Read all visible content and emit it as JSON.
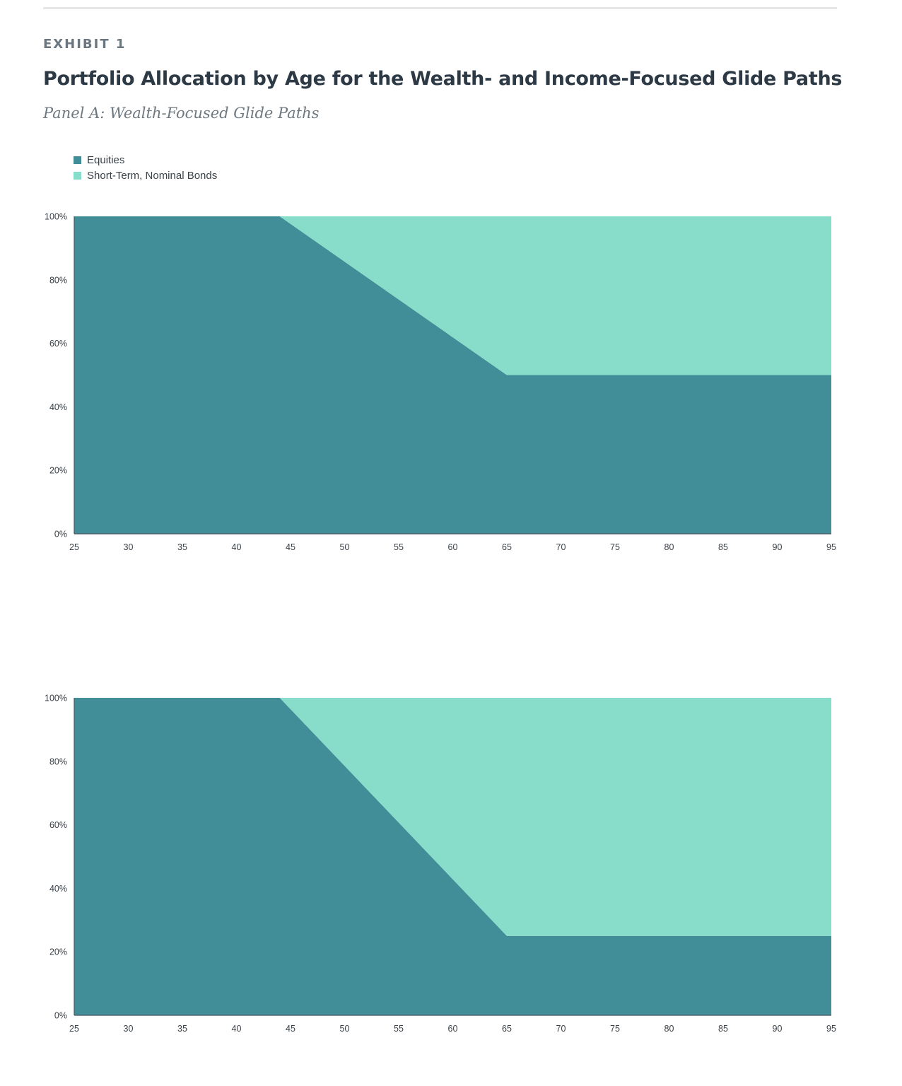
{
  "header": {
    "exhibit": "EXHIBIT 1",
    "title": "Portfolio Allocation by Age for the Wealth- and Income-Focused Glide Paths",
    "subtitle": "Panel A: Wealth-Focused Glide Paths"
  },
  "legend": [
    {
      "label": "Equities",
      "color": "#418d98"
    },
    {
      "label": "Short-Term, Nominal Bonds",
      "color": "#87ddc9"
    }
  ],
  "chart_data": [
    {
      "type": "area",
      "stacked": true,
      "x": [
        25,
        44,
        65,
        95
      ],
      "series": [
        {
          "name": "Equities",
          "values": [
            100,
            100,
            50,
            50
          ],
          "color": "#418d98"
        },
        {
          "name": "Short-Term, Nominal Bonds",
          "values": [
            0,
            0,
            50,
            50
          ],
          "color": "#87ddc9"
        }
      ],
      "xlim": [
        25,
        95
      ],
      "ylim": [
        0,
        100
      ],
      "xticks": [
        "25",
        "30",
        "35",
        "40",
        "45",
        "50",
        "55",
        "60",
        "65",
        "70",
        "75",
        "80",
        "85",
        "90",
        "95"
      ],
      "yticks": [
        "0%",
        "20%",
        "40%",
        "60%",
        "80%",
        "100%"
      ],
      "grid": false,
      "legend": "top-left"
    },
    {
      "type": "area",
      "stacked": true,
      "x": [
        25,
        44,
        65,
        95
      ],
      "series": [
        {
          "name": "Equities",
          "values": [
            100,
            100,
            25,
            25
          ],
          "color": "#418d98"
        },
        {
          "name": "Short-Term, Nominal Bonds",
          "values": [
            0,
            0,
            75,
            75
          ],
          "color": "#87ddc9"
        }
      ],
      "xlim": [
        25,
        95
      ],
      "ylim": [
        0,
        100
      ],
      "xticks": [
        "25",
        "30",
        "35",
        "40",
        "45",
        "50",
        "55",
        "60",
        "65",
        "70",
        "75",
        "80",
        "85",
        "90",
        "95"
      ],
      "yticks": [
        "0%",
        "20%",
        "40%",
        "60%",
        "80%",
        "100%"
      ],
      "grid": false,
      "legend": "none"
    }
  ]
}
